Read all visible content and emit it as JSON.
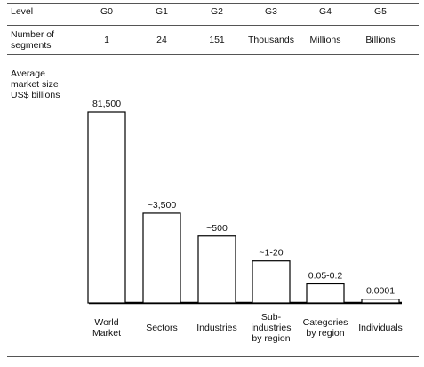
{
  "header": {
    "level_label": "Level",
    "levels": [
      "G0",
      "G1",
      "G2",
      "G3",
      "G4",
      "G5"
    ],
    "segments_label_line1": "Number of",
    "segments_label_line2": "segments",
    "segments": [
      "1",
      "24",
      "151",
      "Thousands",
      "Millions",
      "Billions"
    ]
  },
  "chart_data": {
    "type": "bar",
    "ylabel_lines": [
      "Average",
      "market size",
      "US$ billions"
    ],
    "categories": [
      "World Market",
      "Sectors",
      "Industries",
      "Sub-industries by region",
      "Categories by region",
      "Individuals"
    ],
    "category_label_lines": [
      [
        "World",
        "Market"
      ],
      [
        "Sectors"
      ],
      [
        "Industries"
      ],
      [
        "Sub-",
        "industries",
        "by region"
      ],
      [
        "Categories",
        "by region"
      ],
      [
        "Individuals"
      ]
    ],
    "values": [
      81500,
      3500,
      500,
      10,
      0.1,
      0.0001
    ],
    "data_labels": [
      "81,500",
      "~3,500",
      "~500",
      "~1-20",
      "0.05-0.2",
      "0.0001"
    ],
    "relative_heights": [
      1.0,
      0.47,
      0.35,
      0.22,
      0.1,
      0.02
    ],
    "y_axis_ticks": "none",
    "grid": false
  }
}
